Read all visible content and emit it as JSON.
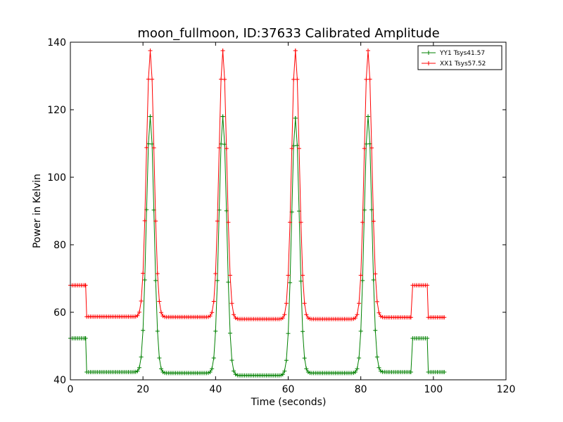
{
  "chart_data": {
    "type": "line",
    "title": "moon_fullmoon, ID:37633 Calibrated Amplitude",
    "xlabel": "Time (seconds)",
    "ylabel": "Power in Kelvin",
    "xlim": [
      0,
      120
    ],
    "ylim": [
      40,
      140
    ],
    "xticks": [
      "0",
      "20",
      "40",
      "60",
      "80",
      "100",
      "120"
    ],
    "yticks": [
      "40",
      "60",
      "80",
      "100",
      "120",
      "140"
    ],
    "legend_position": "top-right",
    "grid": false,
    "series": [
      {
        "name": "YY1 Tsys41.57",
        "color": "#008000",
        "marker": "+",
        "segments": [
          {
            "t": [
              0,
              4.2
            ],
            "level": 52.3
          },
          {
            "t": [
              4.5,
              22
            ],
            "level": 42.3
          },
          {
            "t": [
              22,
              42
            ],
            "level": 42.0
          },
          {
            "t": [
              42,
              62
            ],
            "level": 41.3
          },
          {
            "t": [
              62,
              82
            ],
            "level": 42.0
          },
          {
            "t": [
              82,
              93.8
            ],
            "level": 42.3
          },
          {
            "t": [
              94.3,
              98.3
            ],
            "level": 52.3
          },
          {
            "t": [
              98.6,
              103
            ],
            "level": 42.3
          }
        ],
        "peaks": [
          {
            "t": 22,
            "value": 118
          },
          {
            "t": 42,
            "value": 118
          },
          {
            "t": 62,
            "value": 117.5
          },
          {
            "t": 82,
            "value": 118
          }
        ]
      },
      {
        "name": "XX1 Tsys57.52",
        "color": "#ff0000",
        "marker": "+",
        "segments": [
          {
            "t": [
              0,
              4.2
            ],
            "level": 68.0
          },
          {
            "t": [
              4.5,
              22
            ],
            "level": 58.7
          },
          {
            "t": [
              22,
              42
            ],
            "level": 58.6
          },
          {
            "t": [
              42,
              62
            ],
            "level": 58.0
          },
          {
            "t": [
              62,
              82
            ],
            "level": 58.0
          },
          {
            "t": [
              82,
              93.8
            ],
            "level": 58.5
          },
          {
            "t": [
              94.3,
              98.3
            ],
            "level": 68.0
          },
          {
            "t": [
              98.6,
              103
            ],
            "level": 58.5
          }
        ],
        "peaks": [
          {
            "t": 22,
            "value": 137.5
          },
          {
            "t": 42,
            "value": 137.5
          },
          {
            "t": 62,
            "value": 137.5
          },
          {
            "t": 82,
            "value": 137.5
          }
        ]
      }
    ]
  }
}
